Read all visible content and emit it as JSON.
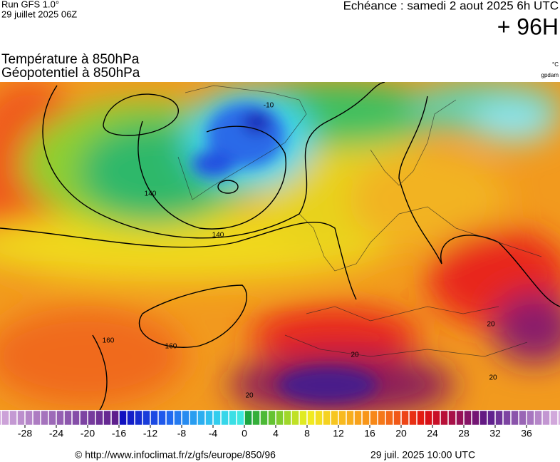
{
  "header": {
    "run": "Run GFS 1.0°",
    "run_date": "29 juillet 2025 06Z",
    "valid": "Echéance : samedi 2 aout 2025 6h UTC",
    "lead": "+ 96H"
  },
  "titles": [
    "Température à 850hPa",
    "Géopotentiel à 850hPa"
  ],
  "units": [
    "°C",
    "gpdam"
  ],
  "map": {
    "contour_labels": [
      "-10",
      "140",
      "140",
      "160",
      "160",
      "20",
      "20",
      "20",
      "20"
    ]
  },
  "colorbar": {
    "ticks": [
      -28,
      -24,
      -20,
      -16,
      -12,
      -8,
      -4,
      0,
      4,
      8,
      12,
      16,
      20,
      24,
      28,
      32,
      36
    ]
  },
  "footer": {
    "url": "© http://www.infoclimat.fr/z/gfs/europe/850/96",
    "timestamp": "29 juil. 2025 10:00 UTC"
  }
}
